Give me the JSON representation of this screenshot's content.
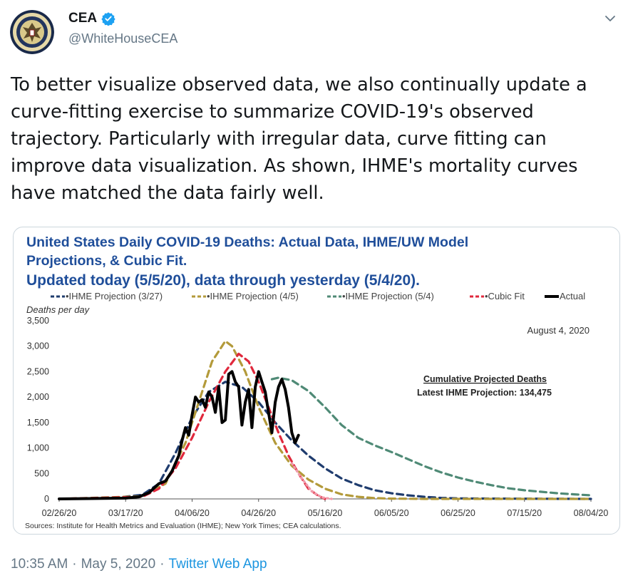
{
  "tweet": {
    "author_name": "CEA",
    "handle": "@WhiteHouseCEA",
    "text": "To better visualize observed data, we also continually update a curve-fitting exercise to summarize COVID-19's observed trajectory. Particularly with irregular data, curve fitting can improve data visualization. As shown, IHME's mortality curves have matched the data fairly well.",
    "time": "10:35 AM",
    "separator": "·",
    "date": "May 5, 2020",
    "app": "Twitter Web App",
    "verified_icon": "verified-badge-icon",
    "more_icon": "chevron-down-icon",
    "avatar_icon": "presidential-seal-icon"
  },
  "chart_data": {
    "type": "line",
    "title_lines": [
      "United States Daily COVID-19 Deaths: Actual Data, IHME/UW Model",
      "Projections, & Cubic Fit.",
      "Updated today (5/5/20), data through yesterday (5/4/20)."
    ],
    "ylabel": "Deaths per day",
    "date_note": "August 4, 2020",
    "annotation_title": "Cumulative Projected Deaths",
    "annotation_value": "Latest IHME Projection: 134,475",
    "source": "Sources: Institute for Health Metrics and Evaluation (IHME); New York Times; CEA calculations.",
    "ylim": [
      0,
      3500
    ],
    "y_ticks": [
      0,
      500,
      1000,
      1500,
      2000,
      2500,
      3000,
      3500
    ],
    "y_tick_labels": [
      "0",
      "500",
      "1,000",
      "1,500",
      "2,000",
      "2,500",
      "3,000",
      "3,500"
    ],
    "x_range_days": [
      0,
      160
    ],
    "x_ticks": [
      {
        "day": 0,
        "label": "02/26/20"
      },
      {
        "day": 20,
        "label": "03/17/20"
      },
      {
        "day": 40,
        "label": "04/06/20"
      },
      {
        "day": 60,
        "label": "04/26/20"
      },
      {
        "day": 80,
        "label": "05/16/20"
      },
      {
        "day": 100,
        "label": "06/05/20"
      },
      {
        "day": 120,
        "label": "06/25/20"
      },
      {
        "day": 140,
        "label": "07/15/20"
      },
      {
        "day": 160,
        "label": "08/04/20"
      }
    ],
    "series": [
      {
        "name": "•IHME Projection (3/27)",
        "color": "#1f3c6e",
        "style": "dashed",
        "points": [
          [
            0,
            0
          ],
          [
            15,
            10
          ],
          [
            25,
            80
          ],
          [
            30,
            300
          ],
          [
            35,
            900
          ],
          [
            40,
            1600
          ],
          [
            45,
            2100
          ],
          [
            50,
            2300
          ],
          [
            55,
            2200
          ],
          [
            60,
            1900
          ],
          [
            65,
            1500
          ],
          [
            70,
            1150
          ],
          [
            75,
            850
          ],
          [
            80,
            600
          ],
          [
            85,
            400
          ],
          [
            90,
            270
          ],
          [
            95,
            170
          ],
          [
            100,
            110
          ],
          [
            105,
            70
          ],
          [
            110,
            40
          ],
          [
            115,
            20
          ],
          [
            120,
            10
          ],
          [
            130,
            5
          ],
          [
            160,
            0
          ]
        ]
      },
      {
        "name": "•IHME Projection (4/5)",
        "color": "#b39a3a",
        "style": "dashed",
        "points": [
          [
            0,
            0
          ],
          [
            25,
            50
          ],
          [
            32,
            300
          ],
          [
            38,
            1100
          ],
          [
            42,
            1900
          ],
          [
            46,
            2700
          ],
          [
            50,
            3100
          ],
          [
            52,
            3000
          ],
          [
            56,
            2500
          ],
          [
            60,
            1800
          ],
          [
            65,
            1100
          ],
          [
            70,
            650
          ],
          [
            75,
            380
          ],
          [
            80,
            200
          ],
          [
            85,
            90
          ],
          [
            90,
            40
          ],
          [
            95,
            15
          ],
          [
            100,
            5
          ],
          [
            110,
            0
          ],
          [
            160,
            0
          ]
        ]
      },
      {
        "name": "•IHME Projection (5/4)",
        "color": "#4f8a76",
        "style": "dashed",
        "points": [
          [
            64,
            2350
          ],
          [
            66,
            2380
          ],
          [
            70,
            2330
          ],
          [
            75,
            2120
          ],
          [
            80,
            1800
          ],
          [
            85,
            1450
          ],
          [
            90,
            1200
          ],
          [
            95,
            1050
          ],
          [
            100,
            920
          ],
          [
            105,
            780
          ],
          [
            110,
            640
          ],
          [
            115,
            520
          ],
          [
            120,
            420
          ],
          [
            125,
            340
          ],
          [
            130,
            270
          ],
          [
            135,
            210
          ],
          [
            140,
            170
          ],
          [
            145,
            140
          ],
          [
            150,
            110
          ],
          [
            155,
            90
          ],
          [
            160,
            70
          ]
        ]
      },
      {
        "name": "•Cubic Fit",
        "color": "#e0283c",
        "style": "dashed",
        "points": [
          [
            0,
            0
          ],
          [
            25,
            40
          ],
          [
            30,
            200
          ],
          [
            35,
            600
          ],
          [
            40,
            1200
          ],
          [
            45,
            1900
          ],
          [
            50,
            2500
          ],
          [
            54,
            2850
          ],
          [
            57,
            2700
          ],
          [
            60,
            2300
          ],
          [
            63,
            1800
          ],
          [
            66,
            1300
          ],
          [
            69,
            850
          ],
          [
            72,
            500
          ],
          [
            75,
            200
          ],
          [
            78,
            60
          ],
          [
            80,
            0
          ]
        ]
      },
      {
        "name": "Cubic Fit (extension)",
        "color": "#f09aaa",
        "style": "dotted",
        "legend": false,
        "points": [
          [
            70,
            700
          ],
          [
            73,
            400
          ],
          [
            76,
            150
          ],
          [
            79,
            30
          ],
          [
            82,
            0
          ]
        ]
      },
      {
        "name": "Actual",
        "color": "#000000",
        "style": "solid",
        "points": [
          [
            0,
            0
          ],
          [
            20,
            15
          ],
          [
            24,
            40
          ],
          [
            27,
            120
          ],
          [
            30,
            300
          ],
          [
            32,
            350
          ],
          [
            34,
            550
          ],
          [
            36,
            850
          ],
          [
            37,
            1150
          ],
          [
            38,
            1400
          ],
          [
            39,
            1250
          ],
          [
            40,
            1650
          ],
          [
            41,
            2000
          ],
          [
            42,
            1900
          ],
          [
            43,
            1950
          ],
          [
            44,
            1800
          ],
          [
            45,
            2100
          ],
          [
            46,
            2000
          ],
          [
            47,
            1700
          ],
          [
            48,
            2200
          ],
          [
            49,
            1500
          ],
          [
            50,
            1550
          ],
          [
            51,
            2450
          ],
          [
            52,
            2500
          ],
          [
            53,
            2300
          ],
          [
            54,
            2200
          ],
          [
            55,
            1450
          ],
          [
            56,
            1900
          ],
          [
            57,
            2150
          ],
          [
            58,
            1400
          ],
          [
            59,
            2200
          ],
          [
            60,
            2500
          ],
          [
            61,
            2300
          ],
          [
            62,
            2100
          ],
          [
            63,
            1700
          ],
          [
            64,
            1300
          ],
          [
            65,
            1900
          ],
          [
            66,
            2200
          ],
          [
            67,
            2350
          ],
          [
            68,
            2150
          ],
          [
            69,
            1800
          ],
          [
            70,
            1300
          ],
          [
            71,
            1100
          ],
          [
            72,
            1250
          ]
        ]
      }
    ],
    "legend": "top"
  }
}
